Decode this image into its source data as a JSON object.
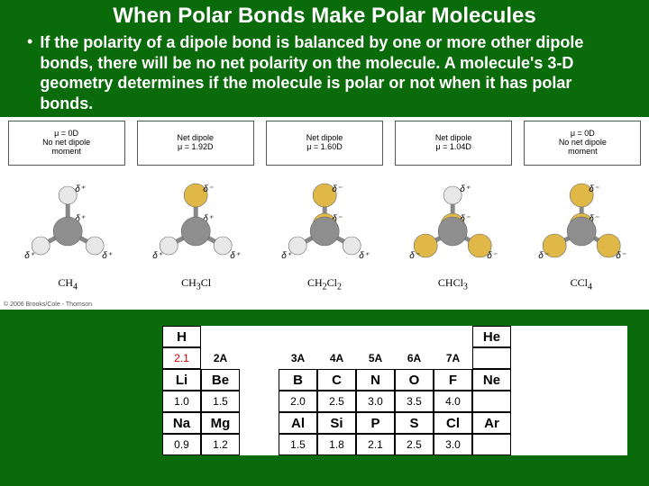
{
  "title": {
    "text": "When Polar Bonds Make Polar Molecules",
    "fontsize": 24,
    "color": "#ffffff"
  },
  "bullet": {
    "text": "If the polarity of a dipole bond is balanced by one or more other dipole bonds, there will be no net polarity on the molecule.  A molecule's 3-D geometry determines if the molecule is polar or not when it has polar bonds.",
    "fontsize": 18,
    "color": "#ffffff"
  },
  "diagram": {
    "background": "#ffffff",
    "copyright": "© 2006 Brooks/Cole - Thomson",
    "atom_colors": {
      "C": "#8e8e8e",
      "H": "#e8e8e8",
      "Cl": "#e0b848"
    },
    "delta_fontsize": 10,
    "box_border": "#555555",
    "molecules": [
      {
        "label": "CH4",
        "box": [
          "μ = 0D",
          "No net dipole",
          "moment"
        ],
        "subs": {
          "Cl": 0,
          "H": 4
        }
      },
      {
        "label": "CH3Cl",
        "box": [
          "Net dipole",
          "μ = 1.92D"
        ],
        "subs": {
          "Cl": 1,
          "H": 3
        }
      },
      {
        "label": "CH2Cl2",
        "box": [
          "Net dipole",
          "μ = 1.60D"
        ],
        "subs": {
          "Cl": 2,
          "H": 2
        }
      },
      {
        "label": "CHCl3",
        "box": [
          "Net dipole",
          "μ = 1.04D"
        ],
        "subs": {
          "Cl": 3,
          "H": 1
        }
      },
      {
        "label": "CCl4",
        "box": [
          "μ = 0D",
          "No net dipole",
          "moment"
        ],
        "subs": {
          "Cl": 4,
          "H": 0
        }
      }
    ]
  },
  "en_table": {
    "dots": "…",
    "grp_labels": [
      "2A",
      "3A",
      "4A",
      "5A",
      "6A",
      "7A"
    ],
    "rows": [
      {
        "cells": [
          {
            "s": "H",
            "v": "2.1",
            "vred": true
          },
          null,
          null,
          null,
          null,
          null,
          null,
          {
            "s": "He",
            "v": ""
          }
        ]
      },
      {
        "cells": [
          {
            "s": "Li",
            "v": "1.0"
          },
          {
            "s": "Be",
            "v": "1.5"
          },
          {
            "s": "B",
            "v": "2.0"
          },
          {
            "s": "C",
            "v": "2.5"
          },
          {
            "s": "N",
            "v": "3.0"
          },
          {
            "s": "O",
            "v": "3.5"
          },
          {
            "s": "F",
            "v": "4.0"
          },
          {
            "s": "Ne",
            "v": ""
          }
        ]
      },
      {
        "cells": [
          {
            "s": "Na",
            "v": "0.9"
          },
          {
            "s": "Mg",
            "v": "1.2"
          },
          {
            "s": "Al",
            "v": "1.5"
          },
          {
            "s": "Si",
            "v": "1.8"
          },
          {
            "s": "P",
            "v": "2.1"
          },
          {
            "s": "S",
            "v": "2.5"
          },
          {
            "s": "Cl",
            "v": "3.0"
          },
          {
            "s": "Ar",
            "v": ""
          }
        ]
      }
    ]
  }
}
